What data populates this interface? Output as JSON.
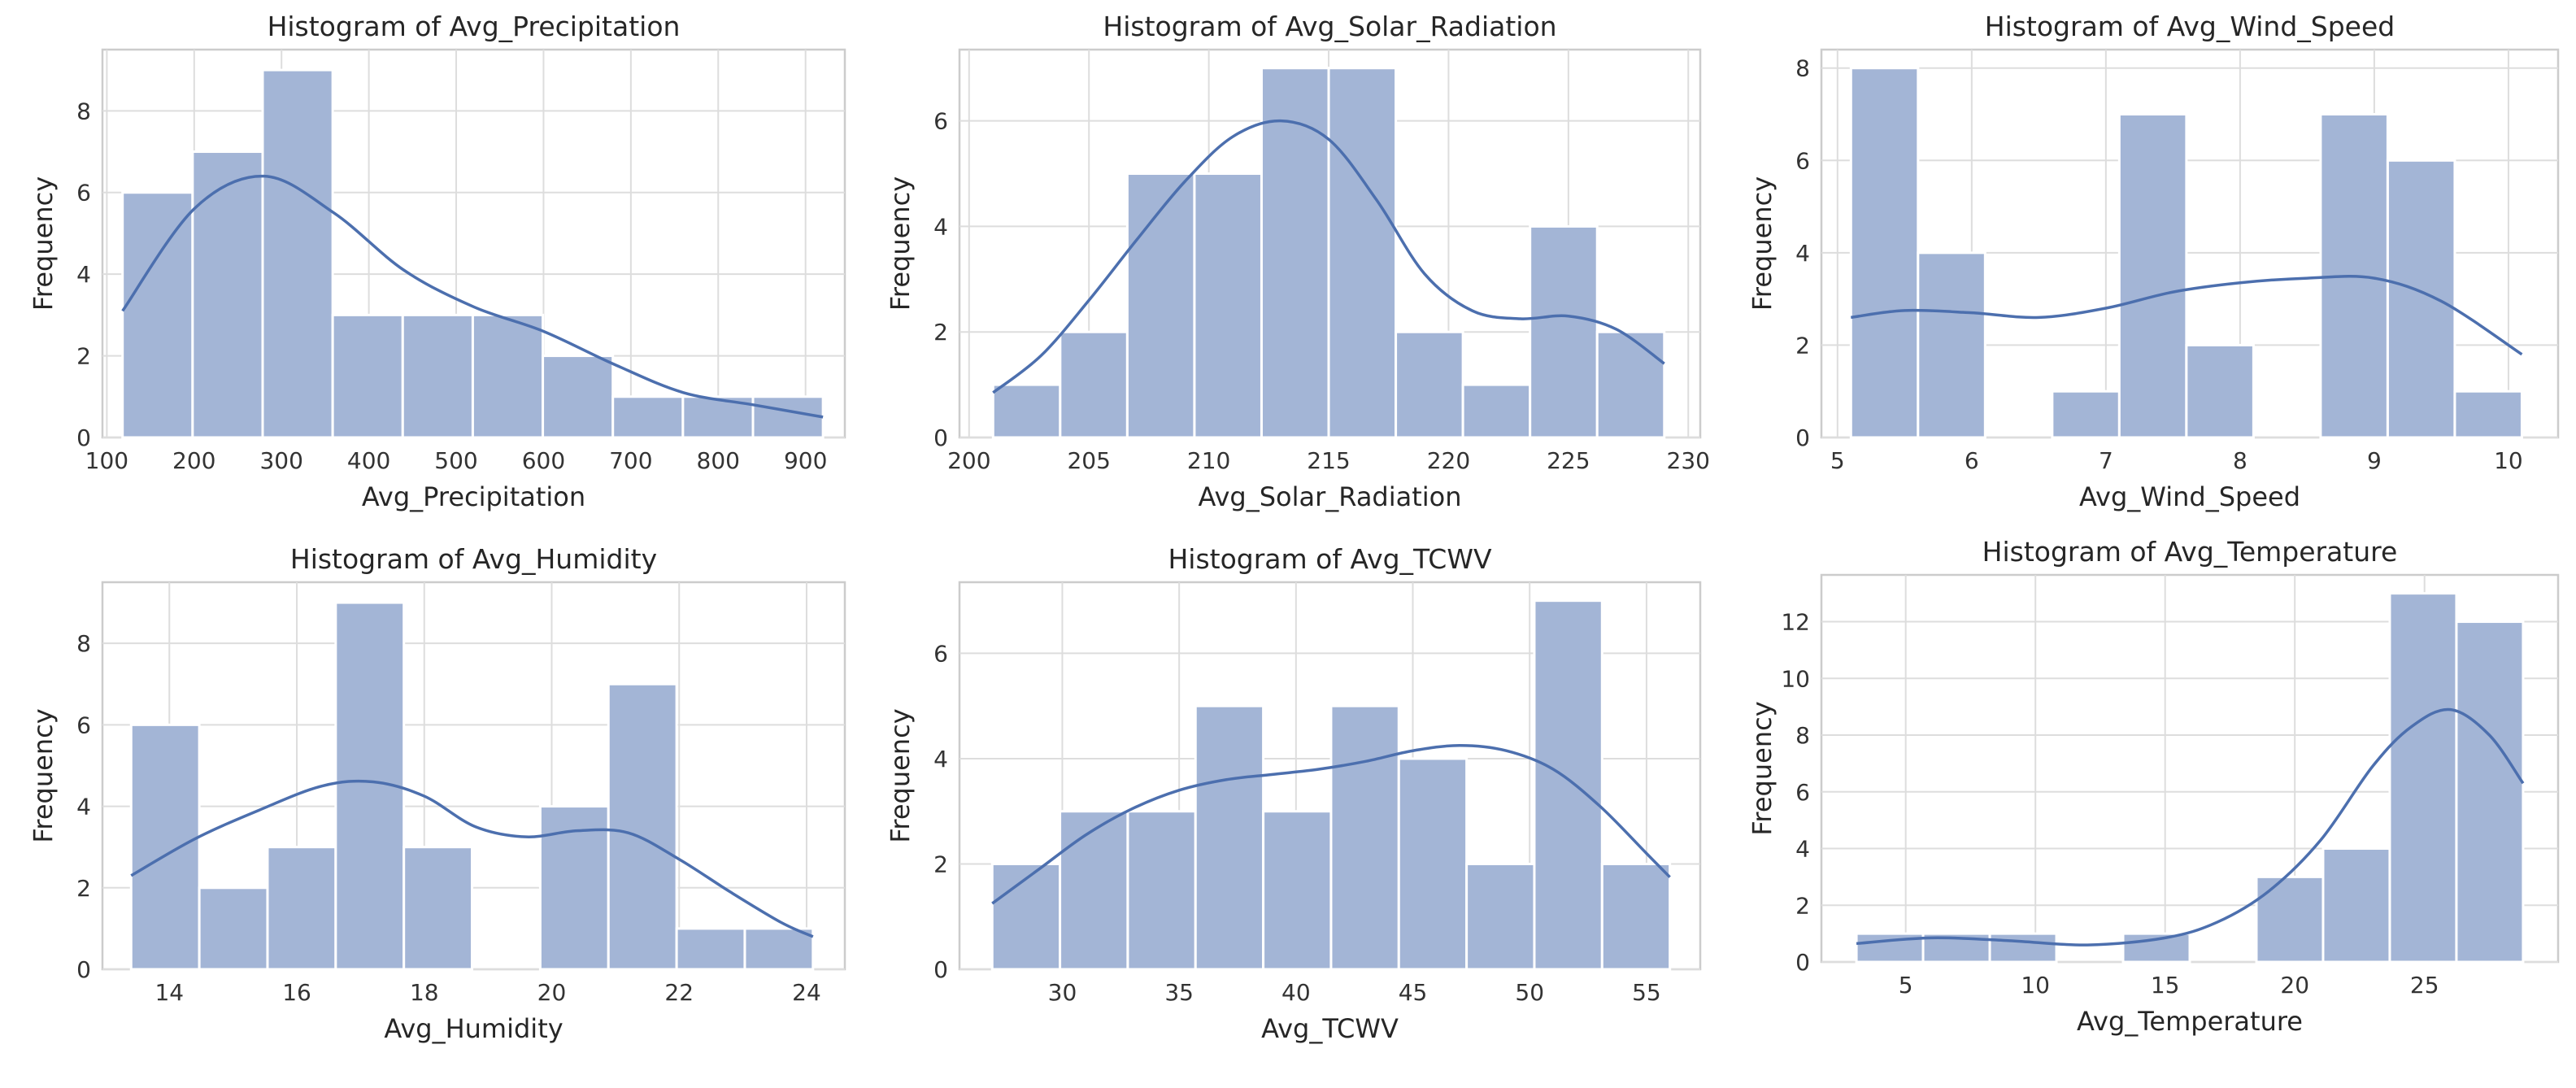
{
  "chart_data": [
    {
      "type": "bar",
      "title": "Histogram of Avg_Precipitation",
      "xlabel": "Avg_Precipitation",
      "ylabel": "Frequency",
      "xlim": [
        95,
        945
      ],
      "ylim": [
        0,
        9.5
      ],
      "xticks": [
        100,
        200,
        300,
        400,
        500,
        600,
        700,
        800,
        900
      ],
      "yticks": [
        0,
        2,
        4,
        6,
        8
      ],
      "grid": true,
      "bin_edges": [
        118,
        198.2,
        278.4,
        358.6,
        438.8,
        519,
        599.2,
        679.4,
        759.6,
        839.8,
        920
      ],
      "values": [
        6,
        7,
        9,
        3,
        3,
        3,
        2,
        1,
        1,
        1
      ],
      "kde": {
        "x": [
          118,
          200,
          280,
          360,
          440,
          520,
          600,
          680,
          760,
          840,
          920
        ],
        "y": [
          3.1,
          5.6,
          6.4,
          5.5,
          4.1,
          3.2,
          2.6,
          1.8,
          1.1,
          0.8,
          0.5
        ]
      }
    },
    {
      "type": "bar",
      "title": "Histogram of Avg_Solar_Radiation",
      "xlabel": "Avg_Solar_Radiation",
      "ylabel": "Frequency",
      "xlim": [
        199.6,
        230.5
      ],
      "ylim": [
        0,
        7.35
      ],
      "xticks": [
        200,
        205,
        210,
        215,
        220,
        225,
        230
      ],
      "yticks": [
        0,
        2,
        4,
        6
      ],
      "grid": true,
      "bin_edges": [
        201,
        203.8,
        206.6,
        209.4,
        212.2,
        215,
        217.8,
        220.6,
        223.4,
        226.2,
        229
      ],
      "values": [
        1,
        2,
        5,
        5,
        7,
        7,
        2,
        1,
        4,
        2
      ],
      "kde": {
        "x": [
          201,
          203,
          205,
          207,
          209,
          211,
          213,
          215,
          217,
          219,
          221,
          223,
          225,
          227,
          229
        ],
        "y": [
          0.85,
          1.55,
          2.6,
          3.75,
          4.85,
          5.7,
          6.0,
          5.65,
          4.5,
          3.1,
          2.4,
          2.25,
          2.3,
          2.05,
          1.4
        ]
      }
    },
    {
      "type": "bar",
      "title": "Histogram of Avg_Wind_Speed",
      "xlabel": "Avg_Wind_Speed",
      "ylabel": "Frequency",
      "xlim": [
        4.88,
        10.37
      ],
      "ylim": [
        0,
        8.4
      ],
      "xticks": [
        5,
        6,
        7,
        8,
        9,
        10
      ],
      "yticks": [
        0,
        2,
        4,
        6,
        8
      ],
      "grid": true,
      "bin_edges": [
        5.1,
        5.6,
        6.1,
        6.6,
        7.1,
        7.6,
        8.1,
        8.6,
        9.1,
        9.6,
        10.1
      ],
      "values": [
        8,
        4,
        0,
        1,
        7,
        2,
        0,
        7,
        6,
        1
      ],
      "kde": {
        "x": [
          5.1,
          5.5,
          6.0,
          6.5,
          7.0,
          7.5,
          8.0,
          8.5,
          9.0,
          9.5,
          10.1
        ],
        "y": [
          2.6,
          2.75,
          2.7,
          2.6,
          2.8,
          3.15,
          3.35,
          3.45,
          3.45,
          2.95,
          1.8
        ]
      }
    },
    {
      "type": "bar",
      "title": "Histogram of Avg_Humidity",
      "xlabel": "Avg_Humidity",
      "ylabel": "Frequency",
      "xlim": [
        12.95,
        24.6
      ],
      "ylim": [
        0,
        9.5
      ],
      "xticks": [
        14,
        16,
        18,
        20,
        22,
        24
      ],
      "yticks": [
        0,
        2,
        4,
        6,
        8
      ],
      "grid": true,
      "bin_edges": [
        13.4,
        14.47,
        15.54,
        16.61,
        17.68,
        18.75,
        19.82,
        20.89,
        21.96,
        23.03,
        24.1
      ],
      "values": [
        6,
        2,
        3,
        9,
        3,
        0,
        4,
        7,
        1,
        1
      ],
      "kde": {
        "x": [
          13.4,
          14.4,
          15.4,
          16.4,
          17.2,
          18.0,
          18.8,
          19.6,
          20.4,
          21.2,
          22.0,
          22.8,
          23.6,
          24.1
        ],
        "y": [
          2.3,
          3.2,
          3.9,
          4.5,
          4.6,
          4.25,
          3.5,
          3.25,
          3.4,
          3.35,
          2.7,
          1.9,
          1.15,
          0.8
        ]
      }
    },
    {
      "type": "bar",
      "title": "Histogram of Avg_TCWV",
      "xlabel": "Avg_TCWV",
      "ylabel": "Frequency",
      "xlim": [
        25.6,
        57.3
      ],
      "ylim": [
        0,
        7.35
      ],
      "xticks": [
        30,
        35,
        40,
        45,
        50,
        55
      ],
      "yticks": [
        0,
        2,
        4,
        6
      ],
      "grid": true,
      "bin_edges": [
        27,
        29.9,
        32.8,
        35.7,
        38.6,
        41.5,
        44.4,
        47.3,
        50.2,
        53.1,
        56
      ],
      "values": [
        2,
        3,
        3,
        5,
        3,
        5,
        4,
        2,
        7,
        2
      ],
      "kde": {
        "x": [
          27,
          29,
          31,
          33,
          35,
          37,
          39,
          41,
          43,
          45,
          47,
          49,
          51,
          53,
          55,
          56
        ],
        "y": [
          1.25,
          1.9,
          2.55,
          3.05,
          3.4,
          3.6,
          3.7,
          3.8,
          3.95,
          4.15,
          4.25,
          4.15,
          3.8,
          3.1,
          2.2,
          1.75
        ]
      }
    },
    {
      "type": "bar",
      "title": "Histogram of Avg_Temperature",
      "xlabel": "Avg_Temperature",
      "ylabel": "Frequency",
      "xlim": [
        1.75,
        30.15
      ],
      "ylim": [
        0,
        13.65
      ],
      "xticks": [
        5,
        10,
        15,
        20,
        25
      ],
      "yticks": [
        0,
        2,
        4,
        6,
        8,
        10,
        12
      ],
      "grid": true,
      "bin_edges": [
        3.1,
        5.67,
        8.24,
        10.81,
        13.38,
        15.95,
        18.52,
        21.09,
        23.66,
        26.23,
        28.8
      ],
      "values": [
        1,
        1,
        1,
        0,
        1,
        0,
        3,
        4,
        13,
        12
      ],
      "kde": {
        "x": [
          3.1,
          6,
          9,
          12,
          15,
          17,
          19,
          21,
          23,
          24.5,
          26,
          27.5,
          28.8
        ],
        "y": [
          0.65,
          0.85,
          0.75,
          0.6,
          0.85,
          1.4,
          2.5,
          4.3,
          6.9,
          8.3,
          8.9,
          8.0,
          6.3
        ]
      }
    }
  ]
}
